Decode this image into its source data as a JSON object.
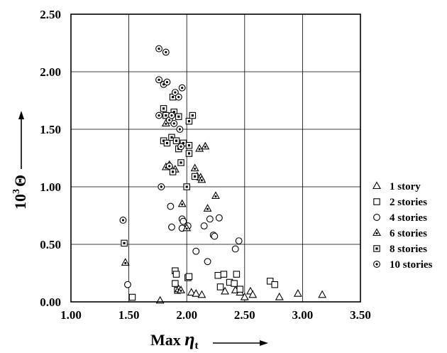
{
  "chart_data": {
    "type": "scatter",
    "title": "",
    "xlabel": {
      "prefix": "Max ",
      "symbol": "η",
      "subscript": "t"
    },
    "ylabel": {
      "base": "10",
      "exponent": "3",
      "symbol": "Θ"
    },
    "xlim": [
      1.0,
      3.5
    ],
    "ylim": [
      0.0,
      2.5
    ],
    "xticks": [
      "1.00",
      "1.50",
      "2.00",
      "2.50",
      "3.00",
      "3.50"
    ],
    "yticks": [
      "0.00",
      "0.50",
      "1.00",
      "1.50",
      "2.00",
      "2.50"
    ],
    "grid": true,
    "legend_position": "right",
    "series": [
      {
        "name": "1 story",
        "marker": "triangle",
        "points": [
          [
            1.77,
            0.01
          ],
          [
            2.04,
            0.08
          ],
          [
            2.08,
            0.07
          ],
          [
            2.13,
            0.06
          ],
          [
            2.33,
            0.09
          ],
          [
            2.42,
            0.1
          ],
          [
            2.46,
            0.08
          ],
          [
            2.5,
            0.04
          ],
          [
            2.55,
            0.09
          ],
          [
            2.57,
            0.06
          ],
          [
            2.8,
            0.04
          ],
          [
            2.96,
            0.07
          ],
          [
            3.17,
            0.06
          ]
        ]
      },
      {
        "name": "2 stories",
        "marker": "square",
        "points": [
          [
            1.53,
            0.04
          ],
          [
            1.9,
            0.27
          ],
          [
            1.91,
            0.24
          ],
          [
            1.9,
            0.16
          ],
          [
            1.92,
            0.1
          ],
          [
            2.01,
            0.21
          ],
          [
            2.02,
            0.22
          ],
          [
            2.27,
            0.23
          ],
          [
            2.29,
            0.13
          ],
          [
            2.32,
            0.24
          ],
          [
            2.37,
            0.17
          ],
          [
            2.41,
            0.16
          ],
          [
            2.43,
            0.24
          ],
          [
            2.46,
            0.11
          ],
          [
            2.72,
            0.18
          ],
          [
            2.76,
            0.15
          ]
        ]
      },
      {
        "name": "4 stories",
        "marker": "circle",
        "points": [
          [
            1.49,
            0.15
          ],
          [
            1.86,
            0.83
          ],
          [
            1.87,
            0.65
          ],
          [
            1.96,
            0.72
          ],
          [
            1.96,
            0.64
          ],
          [
            1.97,
            0.7
          ],
          [
            2.01,
            0.66
          ],
          [
            2.08,
            0.44
          ],
          [
            2.15,
            0.66
          ],
          [
            2.18,
            0.35
          ],
          [
            2.2,
            0.72
          ],
          [
            2.23,
            0.58
          ],
          [
            2.24,
            0.57
          ],
          [
            2.28,
            0.73
          ],
          [
            2.42,
            0.46
          ],
          [
            2.45,
            0.53
          ]
        ]
      },
      {
        "name": "6 stories",
        "marker": "triangle-dot",
        "points": [
          [
            1.47,
            0.34
          ],
          [
            1.82,
            1.55
          ],
          [
            1.82,
            1.17
          ],
          [
            1.85,
            1.19
          ],
          [
            1.9,
            1.15
          ],
          [
            1.93,
            0.11
          ],
          [
            1.95,
            0.1
          ],
          [
            1.96,
            0.85
          ],
          [
            2.0,
            0.64
          ],
          [
            2.07,
            1.16
          ],
          [
            2.09,
            1.09
          ],
          [
            2.11,
            1.33
          ],
          [
            2.12,
            1.08
          ],
          [
            2.13,
            1.06
          ],
          [
            2.16,
            1.35
          ],
          [
            2.18,
            0.81
          ],
          [
            2.25,
            0.92
          ]
        ]
      },
      {
        "name": "8 stories",
        "marker": "square-dot",
        "points": [
          [
            1.46,
            0.51
          ],
          [
            1.8,
            1.68
          ],
          [
            1.8,
            1.4
          ],
          [
            1.82,
            1.62
          ],
          [
            1.83,
            1.38
          ],
          [
            1.87,
            1.43
          ],
          [
            1.88,
            1.13
          ],
          [
            1.89,
            1.65
          ],
          [
            1.88,
            1.78
          ],
          [
            1.91,
            1.4
          ],
          [
            1.93,
            1.61
          ],
          [
            1.93,
            1.33
          ],
          [
            1.95,
            1.21
          ],
          [
            1.97,
            1.38
          ],
          [
            2.0,
            1.0
          ],
          [
            2.02,
            1.57
          ],
          [
            2.02,
            1.36
          ],
          [
            2.02,
            1.29
          ],
          [
            2.05,
            1.62
          ],
          [
            2.07,
            1.09
          ]
        ]
      },
      {
        "name": "10 stories",
        "marker": "circle-dot",
        "points": [
          [
            1.45,
            0.71
          ],
          [
            1.76,
            2.2
          ],
          [
            1.76,
            1.93
          ],
          [
            1.76,
            1.62
          ],
          [
            1.78,
            1.0
          ],
          [
            1.8,
            1.89
          ],
          [
            1.82,
            2.17
          ],
          [
            1.83,
            1.91
          ],
          [
            1.85,
            1.18
          ],
          [
            1.85,
            1.58
          ],
          [
            1.87,
            1.62
          ],
          [
            1.89,
            1.55
          ],
          [
            1.9,
            1.82
          ],
          [
            1.93,
            1.78
          ],
          [
            1.94,
            1.5
          ],
          [
            1.96,
            1.86
          ],
          [
            1.95,
            1.35
          ]
        ]
      }
    ]
  }
}
